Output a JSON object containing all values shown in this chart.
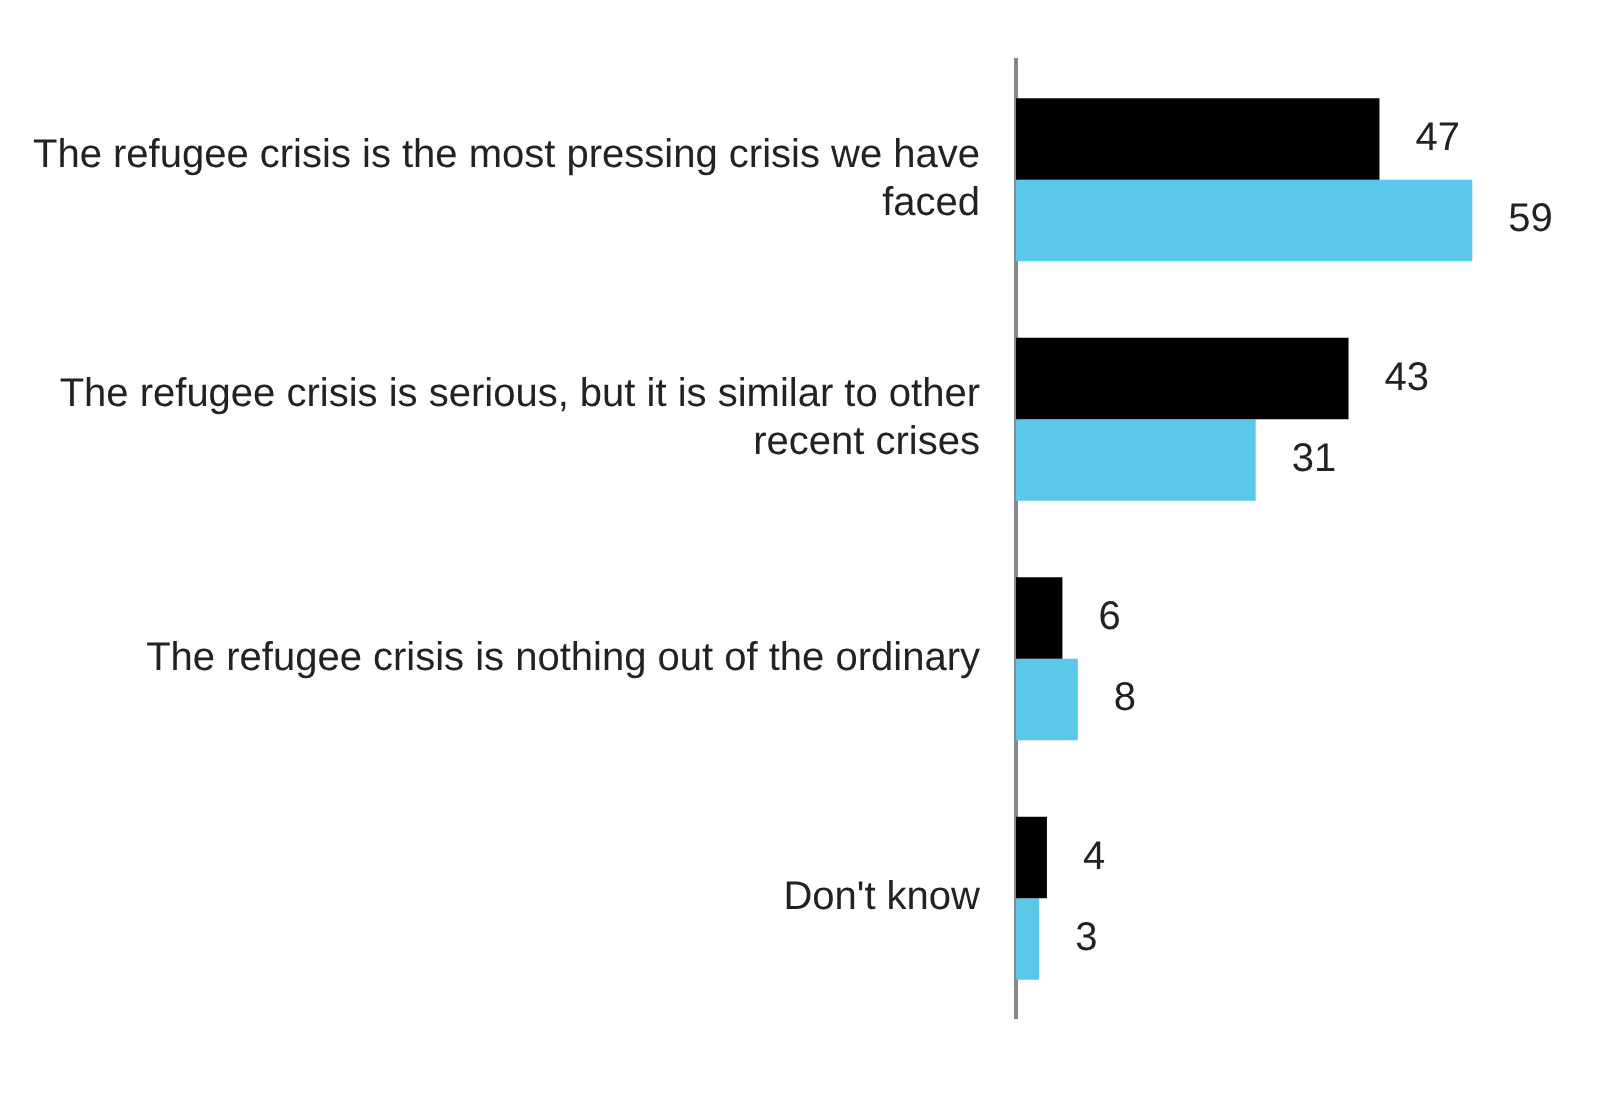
{
  "chart_data": {
    "type": "bar",
    "orientation": "horizontal",
    "categories": [
      "The refugee crisis is the most pressing crisis we have faced",
      "The refugee crisis is serious, but it is similar to other recent crises",
      "The refugee crisis is nothing out of the ordinary",
      "Don't know"
    ],
    "series": [
      {
        "color": "#000000",
        "values": [
          47,
          43,
          6,
          4
        ]
      },
      {
        "color": "#5bc8ea",
        "values": [
          59,
          31,
          8,
          3
        ]
      }
    ],
    "data_labels": true,
    "grid": false,
    "legend": false
  }
}
